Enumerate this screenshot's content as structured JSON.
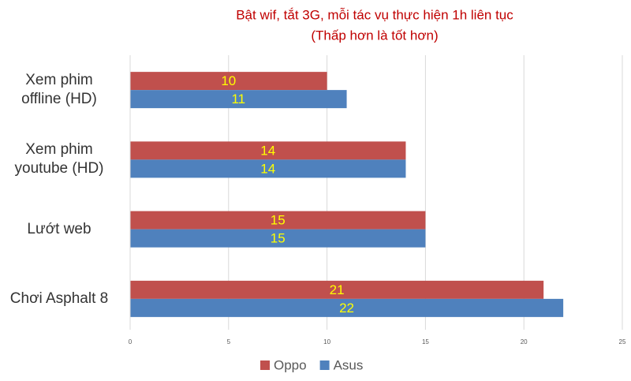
{
  "chart_data": {
    "type": "bar",
    "orientation": "horizontal",
    "title": "Bật wif, tắt 3G, mỗi tác vụ thực hiện 1h liên tục",
    "subtitle": "(Thấp hơn là tốt hơn)",
    "categories": [
      "Xem phim\noffline (HD)",
      "Xem phim\nyoutube (HD)",
      "Lướt web",
      "Chơi Asphalt 8"
    ],
    "series": [
      {
        "name": "Oppo",
        "color": "#c0504d",
        "values": [
          10,
          14,
          15,
          21
        ]
      },
      {
        "name": "Asus",
        "color": "#4f81bd",
        "values": [
          11,
          14,
          15,
          22
        ]
      }
    ],
    "xlim": [
      0,
      25
    ],
    "xticks": [
      0,
      5,
      10,
      15,
      20,
      25
    ],
    "grid": true,
    "legend": "bottom"
  }
}
